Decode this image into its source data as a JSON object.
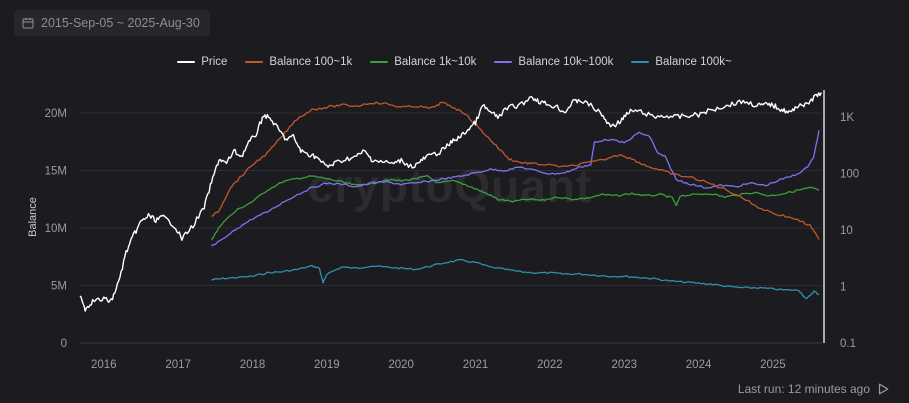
{
  "date_range": {
    "label": "2015-Sep-05 ~ 2025-Aug-30"
  },
  "footer": {
    "last_run": "Last run: 12 minutes ago"
  },
  "watermark": "cryptoQuant",
  "colors": {
    "background": "#1c1c20",
    "price": "#ffffff",
    "balance_100_1k": "#c0582a",
    "balance_1k_10k": "#3aa038",
    "balance_10k_100k": "#7b73f0",
    "balance_100k": "#2f8fae"
  },
  "chart_data": {
    "type": "line",
    "x_ticks": [
      "2016",
      "2017",
      "2018",
      "2019",
      "2020",
      "2021",
      "2022",
      "2023",
      "2024",
      "2025"
    ],
    "x_range": [
      2015.68,
      2025.66
    ],
    "ylabel": "Balance",
    "y_left": {
      "range": [
        0,
        22000000
      ],
      "ticks": [
        0,
        5000000,
        10000000,
        15000000,
        20000000
      ],
      "tick_labels": [
        "0",
        "5M",
        "10M",
        "15M",
        "20M"
      ]
    },
    "y_right": {
      "scale": "log",
      "range": [
        0.1,
        3000
      ],
      "ticks": [
        0.1,
        1,
        10,
        100,
        1000
      ],
      "tick_labels": [
        "0.1",
        "1",
        "10",
        "100",
        "1K"
      ]
    },
    "series": [
      {
        "name": "Price",
        "axis": "right",
        "color_key": "price",
        "points": [
          [
            2015.68,
            0.75
          ],
          [
            2015.75,
            0.4
          ],
          [
            2015.85,
            0.55
          ],
          [
            2016.0,
            0.6
          ],
          [
            2016.1,
            0.55
          ],
          [
            2016.2,
            1.2
          ],
          [
            2016.3,
            4
          ],
          [
            2016.4,
            8
          ],
          [
            2016.5,
            14
          ],
          [
            2016.6,
            18
          ],
          [
            2016.7,
            15
          ],
          [
            2016.8,
            17
          ],
          [
            2016.95,
            12
          ],
          [
            2017.05,
            7
          ],
          [
            2017.2,
            12
          ],
          [
            2017.35,
            25
          ],
          [
            2017.45,
            70
          ],
          [
            2017.55,
            180
          ],
          [
            2017.65,
            150
          ],
          [
            2017.75,
            250
          ],
          [
            2017.85,
            200
          ],
          [
            2017.95,
            350
          ],
          [
            2018.05,
            500
          ],
          [
            2018.15,
            1100
          ],
          [
            2018.25,
            900
          ],
          [
            2018.35,
            600
          ],
          [
            2018.45,
            400
          ],
          [
            2018.55,
            450
          ],
          [
            2018.65,
            250
          ],
          [
            2018.75,
            220
          ],
          [
            2018.85,
            200
          ],
          [
            2019.0,
            130
          ],
          [
            2019.1,
            150
          ],
          [
            2019.25,
            180
          ],
          [
            2019.4,
            200
          ],
          [
            2019.5,
            250
          ],
          [
            2019.6,
            180
          ],
          [
            2019.75,
            160
          ],
          [
            2019.9,
            150
          ],
          [
            2020.0,
            170
          ],
          [
            2020.15,
            130
          ],
          [
            2020.25,
            160
          ],
          [
            2020.35,
            200
          ],
          [
            2020.5,
            230
          ],
          [
            2020.6,
            290
          ],
          [
            2020.7,
            380
          ],
          [
            2020.8,
            450
          ],
          [
            2020.9,
            600
          ],
          [
            2021.0,
            800
          ],
          [
            2021.1,
            1600
          ],
          [
            2021.2,
            1200
          ],
          [
            2021.3,
            1000
          ],
          [
            2021.45,
            1500
          ],
          [
            2021.6,
            1600
          ],
          [
            2021.75,
            2300
          ],
          [
            2021.85,
            1900
          ],
          [
            2021.95,
            1700
          ],
          [
            2022.1,
            1500
          ],
          [
            2022.2,
            1200
          ],
          [
            2022.3,
            1800
          ],
          [
            2022.4,
            2000
          ],
          [
            2022.55,
            1600
          ],
          [
            2022.7,
            1100
          ],
          [
            2022.8,
            700
          ],
          [
            2022.9,
            750
          ],
          [
            2023.0,
            1000
          ],
          [
            2023.1,
            1300
          ],
          [
            2023.25,
            1200
          ],
          [
            2023.4,
            1000
          ],
          [
            2023.55,
            1050
          ],
          [
            2023.7,
            1000
          ],
          [
            2023.85,
            1050
          ],
          [
            2024.0,
            1100
          ],
          [
            2024.15,
            1300
          ],
          [
            2024.3,
            1500
          ],
          [
            2024.45,
            1700
          ],
          [
            2024.6,
            1900
          ],
          [
            2024.75,
            1650
          ],
          [
            2024.85,
            1600
          ],
          [
            2024.95,
            1700
          ],
          [
            2025.05,
            1500
          ],
          [
            2025.15,
            1300
          ],
          [
            2025.25,
            1200
          ],
          [
            2025.35,
            1700
          ],
          [
            2025.45,
            1600
          ],
          [
            2025.55,
            2200
          ],
          [
            2025.65,
            2700
          ]
        ]
      },
      {
        "name": "Balance 100~1k",
        "axis": "left",
        "color_key": "balance_100_1k",
        "points": [
          [
            2017.45,
            11000000
          ],
          [
            2017.55,
            11500000
          ],
          [
            2017.7,
            13500000
          ],
          [
            2017.85,
            14500000
          ],
          [
            2018.0,
            15500000
          ],
          [
            2018.2,
            16500000
          ],
          [
            2018.4,
            18000000
          ],
          [
            2018.6,
            19500000
          ],
          [
            2018.8,
            20300000
          ],
          [
            2019.0,
            20500000
          ],
          [
            2019.2,
            20700000
          ],
          [
            2019.4,
            20600000
          ],
          [
            2019.6,
            20900000
          ],
          [
            2019.8,
            20800000
          ],
          [
            2020.0,
            20500000
          ],
          [
            2020.2,
            20600000
          ],
          [
            2020.4,
            20400000
          ],
          [
            2020.55,
            20900000
          ],
          [
            2020.7,
            20500000
          ],
          [
            2020.85,
            20000000
          ],
          [
            2021.0,
            19000000
          ],
          [
            2021.15,
            18000000
          ],
          [
            2021.3,
            17000000
          ],
          [
            2021.45,
            16000000
          ],
          [
            2021.6,
            15700000
          ],
          [
            2021.75,
            15600000
          ],
          [
            2021.95,
            15500000
          ],
          [
            2022.2,
            15300000
          ],
          [
            2022.45,
            15600000
          ],
          [
            2022.7,
            15900000
          ],
          [
            2022.95,
            16400000
          ],
          [
            2023.1,
            16000000
          ],
          [
            2023.3,
            15400000
          ],
          [
            2023.5,
            15000000
          ],
          [
            2023.7,
            14600000
          ],
          [
            2023.9,
            14400000
          ],
          [
            2024.1,
            14000000
          ],
          [
            2024.3,
            13500000
          ],
          [
            2024.55,
            12800000
          ],
          [
            2024.8,
            11800000
          ],
          [
            2025.05,
            11200000
          ],
          [
            2025.3,
            10800000
          ],
          [
            2025.5,
            10200000
          ],
          [
            2025.62,
            9000000
          ]
        ]
      },
      {
        "name": "Balance 1k~10k",
        "axis": "left",
        "color_key": "balance_1k_10k",
        "points": [
          [
            2017.45,
            9000000
          ],
          [
            2017.6,
            10500000
          ],
          [
            2017.8,
            11600000
          ],
          [
            2018.0,
            12300000
          ],
          [
            2018.2,
            13300000
          ],
          [
            2018.4,
            14000000
          ],
          [
            2018.6,
            14300000
          ],
          [
            2018.8,
            14500000
          ],
          [
            2019.0,
            14300000
          ],
          [
            2019.2,
            14000000
          ],
          [
            2019.4,
            13700000
          ],
          [
            2019.6,
            13900000
          ],
          [
            2019.8,
            14200000
          ],
          [
            2020.0,
            14100000
          ],
          [
            2020.2,
            14300000
          ],
          [
            2020.35,
            14500000
          ],
          [
            2020.5,
            13900000
          ],
          [
            2020.7,
            14100000
          ],
          [
            2020.85,
            13800000
          ],
          [
            2021.0,
            13400000
          ],
          [
            2021.15,
            13000000
          ],
          [
            2021.3,
            12500000
          ],
          [
            2021.5,
            12300000
          ],
          [
            2021.7,
            12500000
          ],
          [
            2021.9,
            12400000
          ],
          [
            2022.1,
            12700000
          ],
          [
            2022.3,
            12500000
          ],
          [
            2022.5,
            12600000
          ],
          [
            2022.7,
            12900000
          ],
          [
            2022.9,
            12800000
          ],
          [
            2023.1,
            13000000
          ],
          [
            2023.3,
            12800000
          ],
          [
            2023.5,
            12900000
          ],
          [
            2023.65,
            12600000
          ],
          [
            2023.7,
            11900000
          ],
          [
            2023.75,
            12800000
          ],
          [
            2023.95,
            12900000
          ],
          [
            2024.15,
            13000000
          ],
          [
            2024.35,
            12700000
          ],
          [
            2024.55,
            12900000
          ],
          [
            2024.75,
            13100000
          ],
          [
            2024.95,
            12800000
          ],
          [
            2025.15,
            13000000
          ],
          [
            2025.35,
            13300000
          ],
          [
            2025.5,
            13500000
          ],
          [
            2025.62,
            13300000
          ]
        ]
      },
      {
        "name": "Balance 10k~100k",
        "axis": "left",
        "color_key": "balance_10k_100k",
        "points": [
          [
            2017.45,
            8400000
          ],
          [
            2017.6,
            9000000
          ],
          [
            2017.8,
            10000000
          ],
          [
            2018.0,
            10800000
          ],
          [
            2018.2,
            11400000
          ],
          [
            2018.4,
            12200000
          ],
          [
            2018.6,
            12900000
          ],
          [
            2018.8,
            13500000
          ],
          [
            2019.0,
            13900000
          ],
          [
            2019.2,
            13800000
          ],
          [
            2019.4,
            13600000
          ],
          [
            2019.6,
            13900000
          ],
          [
            2019.8,
            14000000
          ],
          [
            2020.0,
            13800000
          ],
          [
            2020.2,
            13900000
          ],
          [
            2020.4,
            14100000
          ],
          [
            2020.6,
            14300000
          ],
          [
            2020.8,
            14500000
          ],
          [
            2021.0,
            14800000
          ],
          [
            2021.2,
            15100000
          ],
          [
            2021.4,
            15000000
          ],
          [
            2021.6,
            15300000
          ],
          [
            2021.8,
            15000000
          ],
          [
            2022.0,
            14700000
          ],
          [
            2022.2,
            14800000
          ],
          [
            2022.4,
            15300000
          ],
          [
            2022.55,
            15500000
          ],
          [
            2022.6,
            17500000
          ],
          [
            2022.8,
            17700000
          ],
          [
            2023.0,
            17400000
          ],
          [
            2023.2,
            18300000
          ],
          [
            2023.35,
            17900000
          ],
          [
            2023.45,
            16500000
          ],
          [
            2023.55,
            16200000
          ],
          [
            2023.7,
            14200000
          ],
          [
            2023.9,
            13800000
          ],
          [
            2024.1,
            13500000
          ],
          [
            2024.3,
            13700000
          ],
          [
            2024.5,
            13600000
          ],
          [
            2024.7,
            13900000
          ],
          [
            2024.9,
            13700000
          ],
          [
            2025.1,
            14200000
          ],
          [
            2025.3,
            14600000
          ],
          [
            2025.45,
            15200000
          ],
          [
            2025.55,
            16200000
          ],
          [
            2025.62,
            18500000
          ]
        ]
      },
      {
        "name": "Balance 100k~",
        "axis": "left",
        "color_key": "balance_100k",
        "points": [
          [
            2017.45,
            5500000
          ],
          [
            2017.6,
            5600000
          ],
          [
            2017.8,
            5700000
          ],
          [
            2018.0,
            5800000
          ],
          [
            2018.2,
            6100000
          ],
          [
            2018.4,
            6200000
          ],
          [
            2018.6,
            6400000
          ],
          [
            2018.8,
            6700000
          ],
          [
            2018.9,
            6500000
          ],
          [
            2018.95,
            5200000
          ],
          [
            2019.0,
            6000000
          ],
          [
            2019.2,
            6600000
          ],
          [
            2019.4,
            6500000
          ],
          [
            2019.6,
            6700000
          ],
          [
            2019.8,
            6600000
          ],
          [
            2020.0,
            6500000
          ],
          [
            2020.2,
            6400000
          ],
          [
            2020.4,
            6700000
          ],
          [
            2020.6,
            7000000
          ],
          [
            2020.8,
            7200000
          ],
          [
            2021.0,
            7000000
          ],
          [
            2021.2,
            6600000
          ],
          [
            2021.4,
            6400000
          ],
          [
            2021.6,
            6200000
          ],
          [
            2021.8,
            6100000
          ],
          [
            2022.0,
            6100000
          ],
          [
            2022.2,
            6000000
          ],
          [
            2022.4,
            6000000
          ],
          [
            2022.6,
            5900000
          ],
          [
            2022.8,
            5800000
          ],
          [
            2023.0,
            5800000
          ],
          [
            2023.2,
            5700000
          ],
          [
            2023.4,
            5600000
          ],
          [
            2023.6,
            5400000
          ],
          [
            2023.8,
            5300000
          ],
          [
            2024.0,
            5200000
          ],
          [
            2024.2,
            5100000
          ],
          [
            2024.4,
            4900000
          ],
          [
            2024.6,
            4800000
          ],
          [
            2024.8,
            4800000
          ],
          [
            2025.0,
            4700000
          ],
          [
            2025.2,
            4600000
          ],
          [
            2025.35,
            4600000
          ],
          [
            2025.45,
            3800000
          ],
          [
            2025.55,
            4500000
          ],
          [
            2025.62,
            4200000
          ]
        ]
      }
    ]
  }
}
